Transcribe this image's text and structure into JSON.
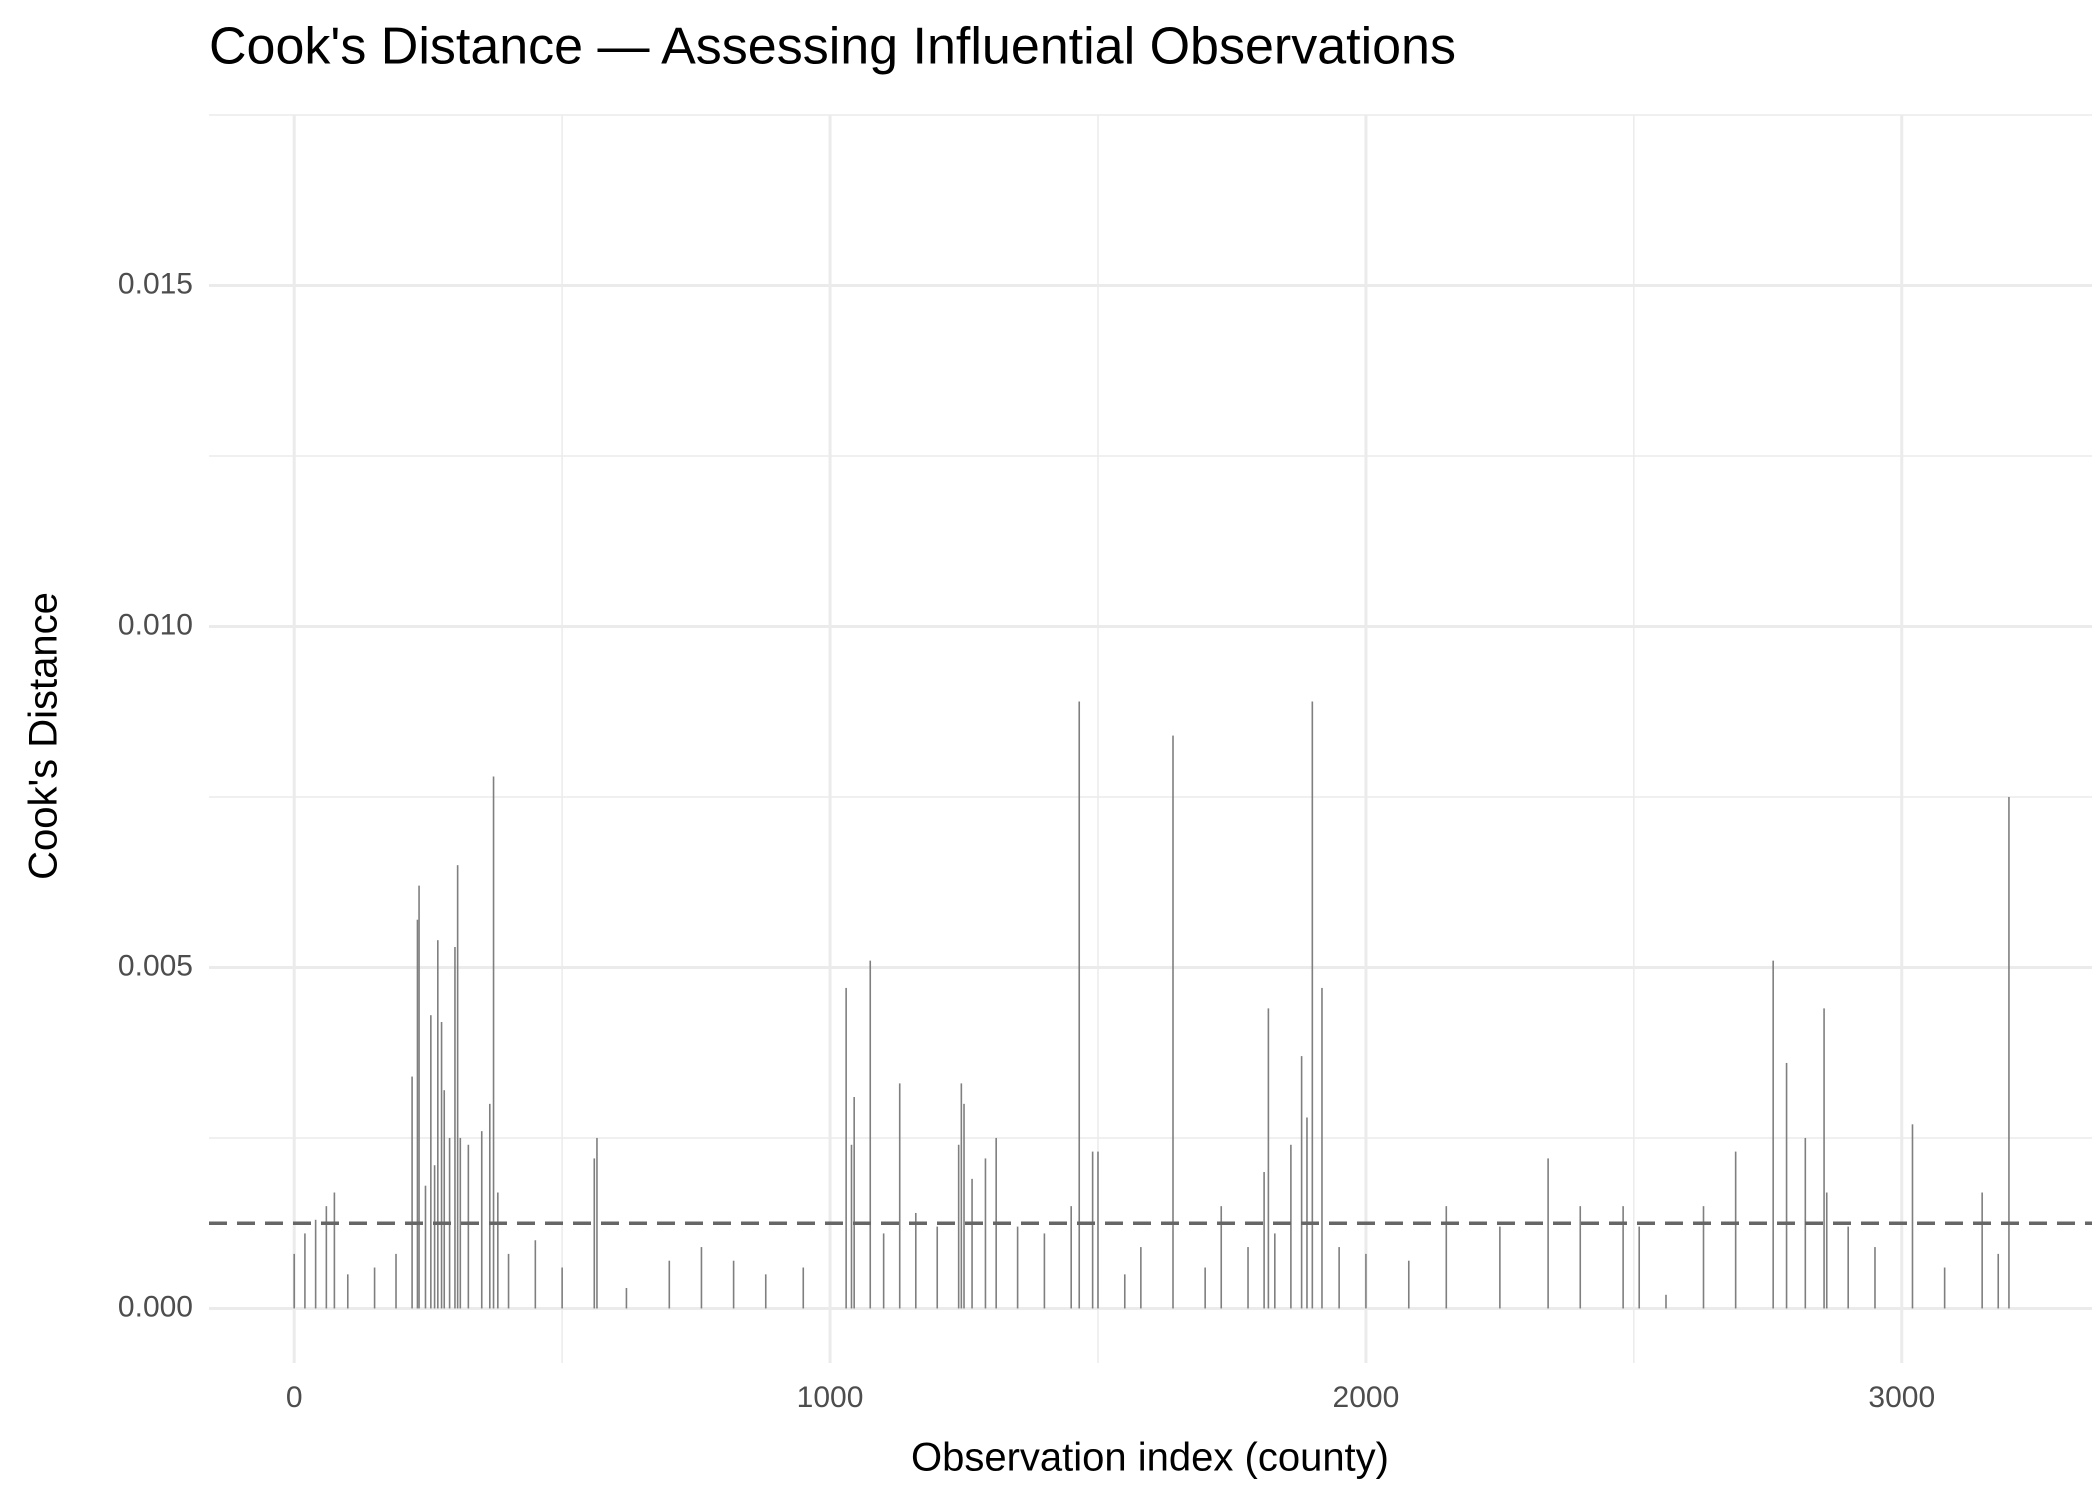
{
  "chart_data": {
    "type": "bar",
    "title": "Cook's Distance — Assessing Influential Observations",
    "x_label": "Observation index (county)",
    "y_label": "Cook's Distance",
    "x": [
      0,
      20,
      40,
      60,
      75,
      100,
      150,
      190,
      220,
      230,
      233,
      245,
      255,
      262,
      268,
      275,
      280,
      290,
      300,
      305,
      310,
      325,
      350,
      365,
      372,
      380,
      400,
      450,
      500,
      560,
      565,
      620,
      700,
      760,
      820,
      880,
      950,
      1030,
      1040,
      1045,
      1075,
      1100,
      1130,
      1160,
      1200,
      1240,
      1245,
      1250,
      1265,
      1290,
      1310,
      1350,
      1400,
      1450,
      1465,
      1490,
      1500,
      1550,
      1580,
      1640,
      1700,
      1730,
      1780,
      1810,
      1818,
      1830,
      1860,
      1880,
      1890,
      1900,
      1918,
      1950,
      2000,
      2080,
      2150,
      2250,
      2340,
      2400,
      2480,
      2510,
      2560,
      2630,
      2690,
      2760,
      2785,
      2820,
      2855,
      2860,
      2900,
      2950,
      3020,
      3080,
      3150,
      3180,
      3200
    ],
    "values": [
      0.0008,
      0.0011,
      0.0013,
      0.0015,
      0.0017,
      0.0005,
      0.0006,
      0.0008,
      0.0034,
      0.0057,
      0.0062,
      0.0018,
      0.0043,
      0.0021,
      0.0054,
      0.0042,
      0.0032,
      0.0025,
      0.0053,
      0.0065,
      0.0025,
      0.0024,
      0.0026,
      0.003,
      0.0078,
      0.0017,
      0.0008,
      0.001,
      0.0006,
      0.0022,
      0.0025,
      0.0003,
      0.0007,
      0.0009,
      0.0007,
      0.0005,
      0.0006,
      0.0047,
      0.0024,
      0.0031,
      0.0051,
      0.0011,
      0.0033,
      0.0014,
      0.0012,
      0.0024,
      0.0033,
      0.003,
      0.0019,
      0.0022,
      0.0025,
      0.0012,
      0.0011,
      0.0015,
      0.0089,
      0.0023,
      0.0023,
      0.0005,
      0.0009,
      0.0084,
      0.0006,
      0.0015,
      0.0009,
      0.002,
      0.0044,
      0.0011,
      0.0024,
      0.0037,
      0.0028,
      0.0089,
      0.0047,
      0.0009,
      0.0008,
      0.0007,
      0.0015,
      0.0012,
      0.0022,
      0.0015,
      0.0015,
      0.0012,
      0.0002,
      0.0015,
      0.0023,
      0.0051,
      0.0036,
      0.0025,
      0.0044,
      0.0017,
      0.0012,
      0.0009,
      0.0027,
      0.0006,
      0.0017,
      0.0008,
      0.0075
    ],
    "color": "#7f7f7f",
    "threshold": 0.00125,
    "threshold_color": "#666666",
    "xlim": [
      -159,
      3355
    ],
    "ylim": [
      -0.0008,
      0.0175
    ],
    "xticks": [
      0,
      1000,
      2000,
      3000
    ],
    "yticks": [
      {
        "value": 0,
        "label": "0.000"
      },
      0.005,
      {
        "value": 0.01,
        "label": "0.010"
      },
      0.015
    ],
    "grid": true
  }
}
